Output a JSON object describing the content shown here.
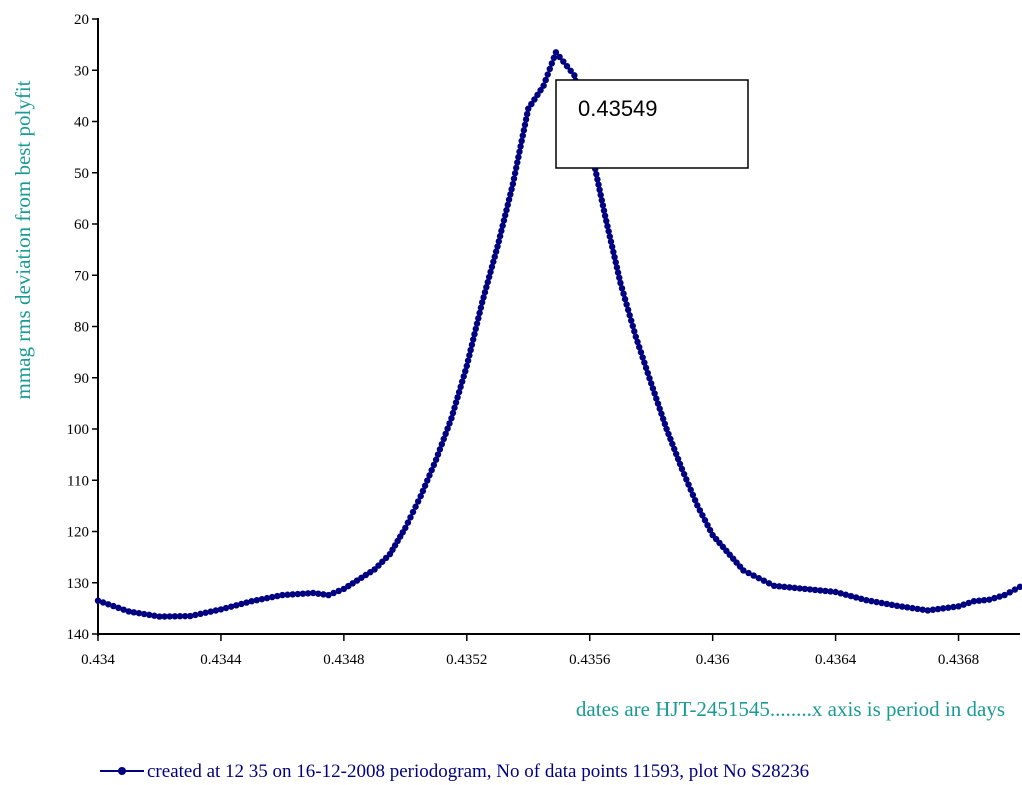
{
  "chart_data": {
    "type": "line",
    "ylabel": "mmag rms deviation from best polyfit",
    "xlabel": "dates are HJT-2451545........x axis is period in days",
    "xlim": [
      0.434,
      0.437
    ],
    "ylim": [
      140,
      20
    ],
    "y_inverted": true,
    "grid": false,
    "x_ticks": [
      "0.434",
      "0.4344",
      "0.4348",
      "0.4352",
      "0.4356",
      "0.436",
      "0.4364",
      "0.4368"
    ],
    "x_tick_values": [
      0.434,
      0.4344,
      0.4348,
      0.4352,
      0.4356,
      0.436,
      0.4364,
      0.4368
    ],
    "y_ticks": [
      "20",
      "30",
      "40",
      "50",
      "60",
      "70",
      "80",
      "90",
      "100",
      "110",
      "120",
      "130",
      "140"
    ],
    "y_tick_values": [
      20,
      30,
      40,
      50,
      60,
      70,
      80,
      90,
      100,
      110,
      120,
      130,
      140
    ],
    "legend": {
      "placement": "bottom",
      "entry": "created at 12 35 on 16-12-2008 periodogram, No of data points 11593,  plot No S28236"
    },
    "annotation": {
      "text": "0.43549"
    },
    "series": [
      {
        "color": "#000080",
        "marker": "circle",
        "x": [
          0.434,
          0.4341,
          0.4342,
          0.4343,
          0.4344,
          0.4345,
          0.4346,
          0.4347,
          0.43475,
          0.4348,
          0.4349,
          0.43495,
          0.435,
          0.43505,
          0.4351,
          0.43515,
          0.4352,
          0.43525,
          0.4353,
          0.43535,
          0.4354,
          0.43545,
          0.43549,
          0.43555,
          0.4356,
          0.43565,
          0.4357,
          0.43575,
          0.4358,
          0.43585,
          0.4359,
          0.43595,
          0.436,
          0.4361,
          0.4362,
          0.4363,
          0.4364,
          0.4365,
          0.4366,
          0.4367,
          0.4368,
          0.43685,
          0.4369,
          0.43695,
          0.437
        ],
        "y": [
          133.5,
          135.6,
          136.6,
          136.5,
          135.2,
          133.6,
          132.4,
          132.0,
          132.4,
          131.2,
          127.4,
          124.4,
          119.3,
          113.1,
          106.0,
          97.9,
          87.7,
          75.3,
          64.4,
          52.2,
          37.5,
          33.0,
          26.5,
          31.0,
          44.2,
          58.4,
          71.5,
          82.0,
          91.1,
          100.0,
          107.8,
          114.9,
          120.7,
          127.6,
          130.6,
          131.2,
          131.8,
          133.4,
          134.5,
          135.4,
          134.6,
          133.6,
          133.3,
          132.4,
          130.8
        ]
      }
    ]
  }
}
